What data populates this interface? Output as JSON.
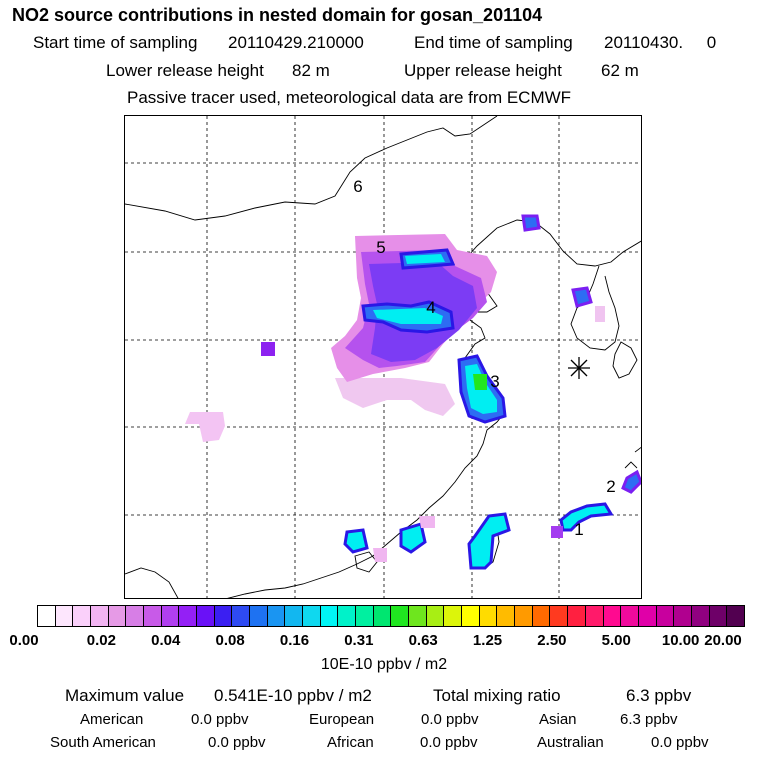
{
  "header": {
    "title": "NO2 source contributions in nested domain for gosan_201104",
    "start_label": "Start time of sampling",
    "start_value": "20110429.210000",
    "end_label": "End time of sampling",
    "end_value": "20110430.     0",
    "lower_label": "Lower release height",
    "lower_value": "82 m",
    "upper_label": "Upper release height",
    "upper_value": "62 m",
    "note": "Passive tracer used, meteorological data are from ECMWF"
  },
  "map": {
    "labels": [
      "1",
      "2",
      "3",
      "4",
      "5",
      "6"
    ],
    "receptor_icon": "star-receptor-icon"
  },
  "colorbar": {
    "colors": [
      "#ffffff",
      "#fde6fd",
      "#fad0fa",
      "#f2b4f2",
      "#e69ae6",
      "#d77ee6",
      "#c85ae8",
      "#b13ff0",
      "#9420f5",
      "#6a11f7",
      "#3b1ff2",
      "#2e4af2",
      "#1e72f2",
      "#1a95f2",
      "#12b7f0",
      "#0fd8ef",
      "#00f5f5",
      "#00f2c9",
      "#00f0a0",
      "#00e670",
      "#20e620",
      "#6ee61e",
      "#a8ee14",
      "#dcf50a",
      "#ffff00",
      "#ffdc00",
      "#ffbb00",
      "#ff9a00",
      "#ff6a00",
      "#ff3a1f",
      "#ff2040",
      "#ff1a6a",
      "#ff0a90",
      "#f00a9c",
      "#e000a8",
      "#c8009e",
      "#b0008f",
      "#900080",
      "#6e0068",
      "#520050"
    ],
    "ticks": [
      "0.00",
      "0.02",
      "0.04",
      "0.08",
      "0.16",
      "0.31",
      "0.63",
      "1.25",
      "2.50",
      "5.00",
      "10.00",
      "20.00"
    ],
    "units": "10E-10 ppbv / m2"
  },
  "stats": {
    "max_label": "Maximum value",
    "max_value": "0.541E-10 ppbv / m2",
    "total_label": "Total mixing ratio",
    "total_value": "6.3 ppbv",
    "american_label": "American",
    "american_value": "0.0 ppbv",
    "european_label": "European",
    "european_value": "0.0 ppbv",
    "asian_label": "Asian",
    "asian_value": "6.3 ppbv",
    "south_american_label": "South American",
    "south_american_value": "0.0 ppbv",
    "african_label": "African",
    "african_value": "0.0 ppbv",
    "australian_label": "Australian",
    "australian_value": "0.0 ppbv"
  }
}
